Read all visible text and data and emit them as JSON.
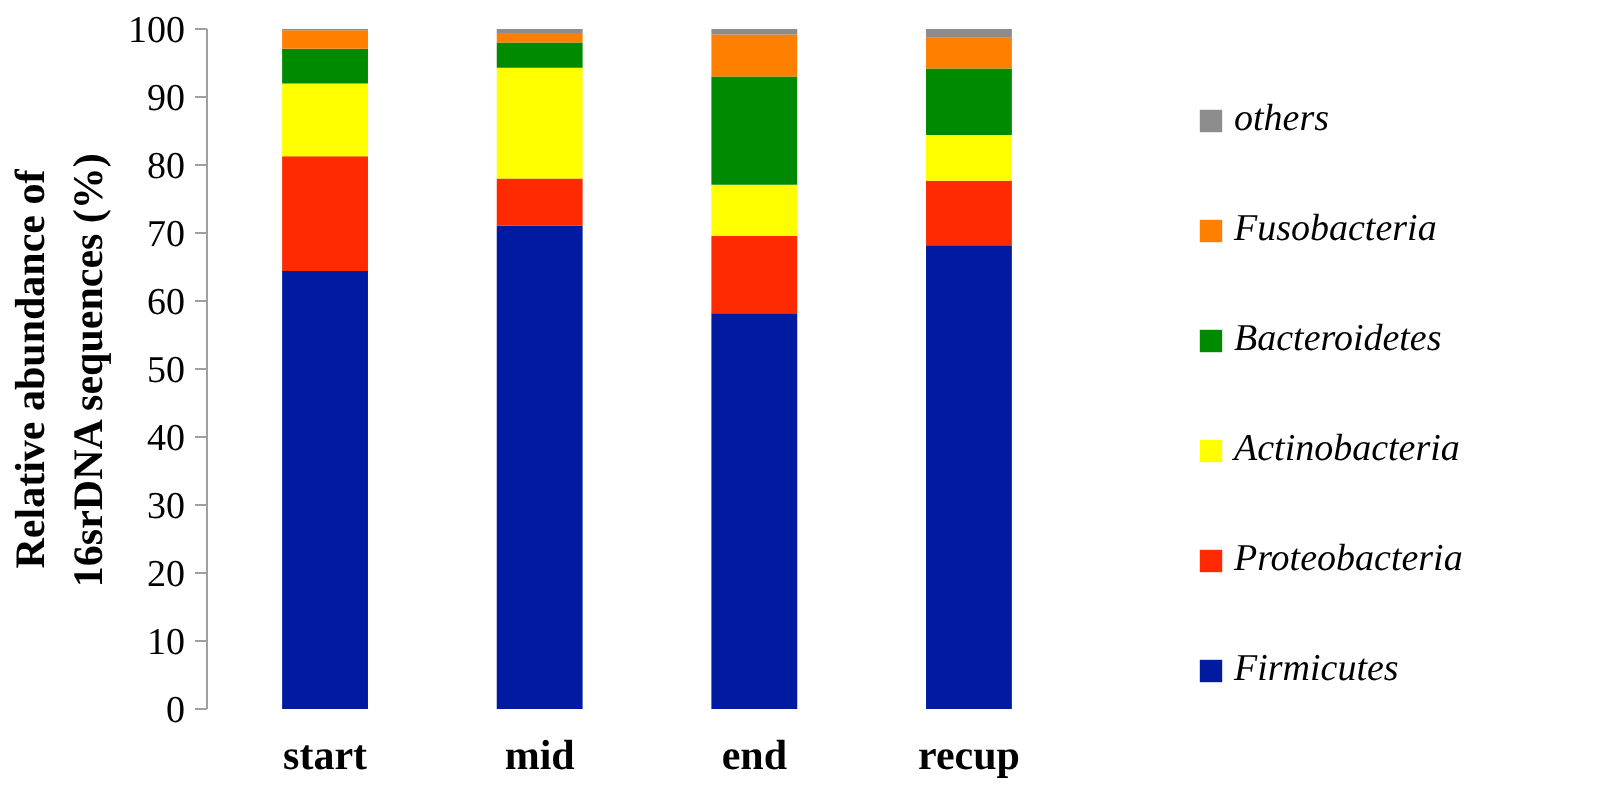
{
  "chart_data": {
    "type": "bar",
    "stacked": true,
    "ylabel": "Relative abundance of\n16srDNA sequences (%)",
    "categories": [
      "start",
      "mid",
      "end",
      "recup"
    ],
    "ylim": [
      0,
      100
    ],
    "yticks": [
      0,
      10,
      20,
      30,
      40,
      50,
      60,
      70,
      80,
      90,
      100
    ],
    "grid": false,
    "legend": "right",
    "series": [
      {
        "name": "Firmicutes",
        "color": "#001aa0",
        "values": [
          64.4,
          71.1,
          58.2,
          68.2
        ]
      },
      {
        "name": "Proteobacteria",
        "color": "#ff2a00",
        "values": [
          16.9,
          6.9,
          11.4,
          9.5
        ]
      },
      {
        "name": "Actinobacteria",
        "color": "#ffff00",
        "values": [
          10.7,
          16.3,
          7.5,
          6.7
        ]
      },
      {
        "name": "Bacteroidetes",
        "color": "#008a00",
        "values": [
          5.1,
          3.7,
          15.9,
          9.8
        ]
      },
      {
        "name": "Fusobacteria",
        "color": "#ff7f00",
        "values": [
          2.7,
          1.4,
          6.2,
          4.5
        ]
      },
      {
        "name": "others",
        "color": "#8c8c8c",
        "values": [
          0.2,
          0.6,
          0.8,
          1.3
        ]
      }
    ]
  }
}
